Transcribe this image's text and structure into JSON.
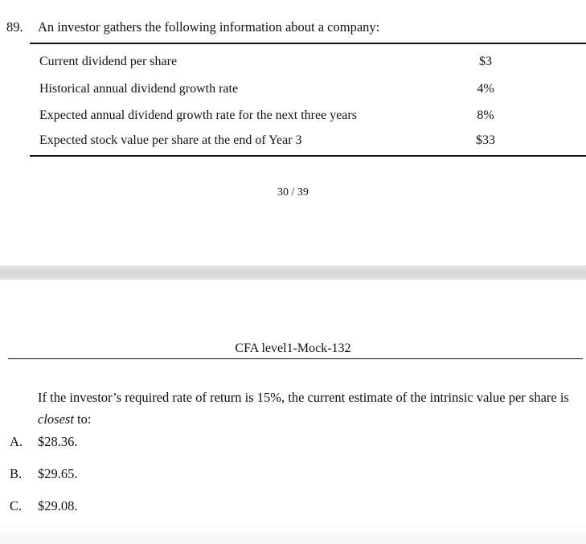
{
  "question": {
    "number": "89.",
    "intro": "An investor gathers the following information about a company:",
    "table": [
      {
        "label": "Current dividend per share",
        "value": "$3"
      },
      {
        "label": "Historical annual dividend growth rate",
        "value": "4%"
      },
      {
        "label": "Expected annual dividend growth rate for the next three years",
        "value": "8%"
      },
      {
        "label": "Expected stock value per share at the end of Year 3",
        "value": "$33"
      }
    ]
  },
  "footer": {
    "page_number": "30 / 39"
  },
  "next_page": {
    "header_title": "CFA level1-Mock-132",
    "stem_part1": "If the investor’s required rate of return is 15%, the current estimate of the intrinsic value per share is ",
    "stem_emphasis": "closest",
    "stem_part2": " to:",
    "options": [
      {
        "letter": "A.",
        "text": "$28.36."
      },
      {
        "letter": "B.",
        "text": "$29.65."
      },
      {
        "letter": "C.",
        "text": "$29.08."
      }
    ]
  }
}
